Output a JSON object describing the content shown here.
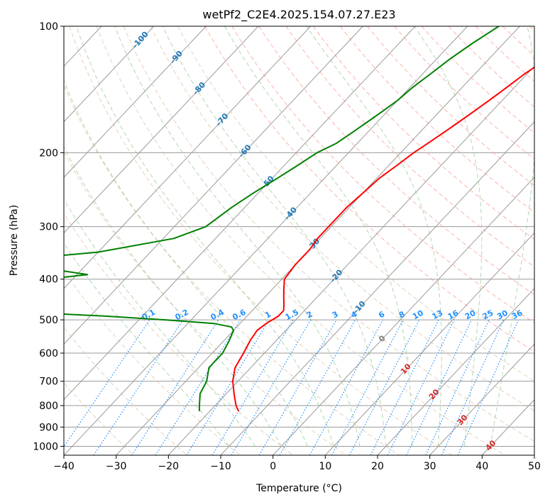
{
  "chart_data": {
    "type": "line",
    "title": "wetPf2_C2E4.2025.154.07.27.E23",
    "xlabel": "Temperature (°C)",
    "ylabel": "Pressure (hPa)",
    "xlim": [
      -40,
      50
    ],
    "ylim": [
      1050,
      100
    ],
    "y_scale": "log",
    "x_ticks": [
      -40,
      -30,
      -20,
      -10,
      0,
      10,
      20,
      30,
      40,
      50
    ],
    "y_ticks": [
      100,
      200,
      300,
      400,
      500,
      600,
      700,
      800,
      900,
      1000
    ],
    "grid": true,
    "series": [
      {
        "color": "#ff0000",
        "pressure": [
          100,
          110,
          120,
          130,
          140,
          150,
          160,
          170,
          180,
          190,
          200,
          215,
          230,
          250,
          270,
          300,
          320,
          340,
          370,
          400,
          420,
          440,
          460,
          475,
          490,
          510,
          530,
          560,
          600,
          650,
          700,
          750,
          800,
          825
        ],
        "temperature": [
          -15,
          -17,
          -19,
          -20.5,
          -21.5,
          -22.5,
          -23.5,
          -24.5,
          -25.5,
          -26.5,
          -27.5,
          -28.5,
          -29.5,
          -30,
          -30.5,
          -30.5,
          -30.5,
          -30,
          -30,
          -29.5,
          -28,
          -26.5,
          -25,
          -24,
          -24,
          -25,
          -25.5,
          -25,
          -24,
          -23,
          -21,
          -18.5,
          -16,
          -14.5
        ]
      },
      {
        "color": "#008000",
        "pressure": [
          100,
          110,
          120,
          130,
          140,
          150,
          160,
          170,
          180,
          190,
          200,
          215,
          230,
          250,
          270,
          300,
          320,
          345,
          360,
          368,
          380,
          390,
          400,
          410,
          420,
          440,
          460,
          475,
          490,
          500,
          510,
          520,
          530,
          560,
          600,
          650,
          700,
          750,
          800,
          825
        ],
        "temperature": [
          -34,
          -36,
          -37.5,
          -38.5,
          -39.5,
          -40,
          -41,
          -42,
          -43,
          -44,
          -46,
          -47.5,
          -49,
          -51,
          -52.5,
          -54,
          -58,
          -70,
          -85,
          -91,
          -75,
          -68,
          -75,
          -85,
          -92,
          -91,
          -86,
          -80,
          -57,
          -45,
          -35,
          -31,
          -30,
          -29,
          -28,
          -28,
          -26,
          -25,
          -23,
          -22
        ]
      }
    ],
    "isotherm_labels": [
      "-100",
      "-90",
      "-80",
      "-70",
      "-60",
      "-50",
      "-40",
      "-30",
      "-20",
      "-10",
      "0",
      "10",
      "20",
      "30",
      "40"
    ],
    "mixing_ratio_labels": [
      "0.1",
      "0.2",
      "0.4",
      "0.6",
      "1",
      "1.5",
      "2",
      "3",
      "4",
      "6",
      "8",
      "10",
      "13",
      "16",
      "20",
      "25",
      "30",
      "36"
    ],
    "colors": {
      "dry_adiabat": "#d2b48c",
      "moist_adiabat": "#90c490",
      "mixing_ratio": "#1e90ff",
      "isotherm": "#000000",
      "isobar": "#000000",
      "isotherm_label_cold": "#1f77b4",
      "isotherm_label_zero": "#7f7f7f",
      "isotherm_label_warm": "#d62728"
    }
  }
}
